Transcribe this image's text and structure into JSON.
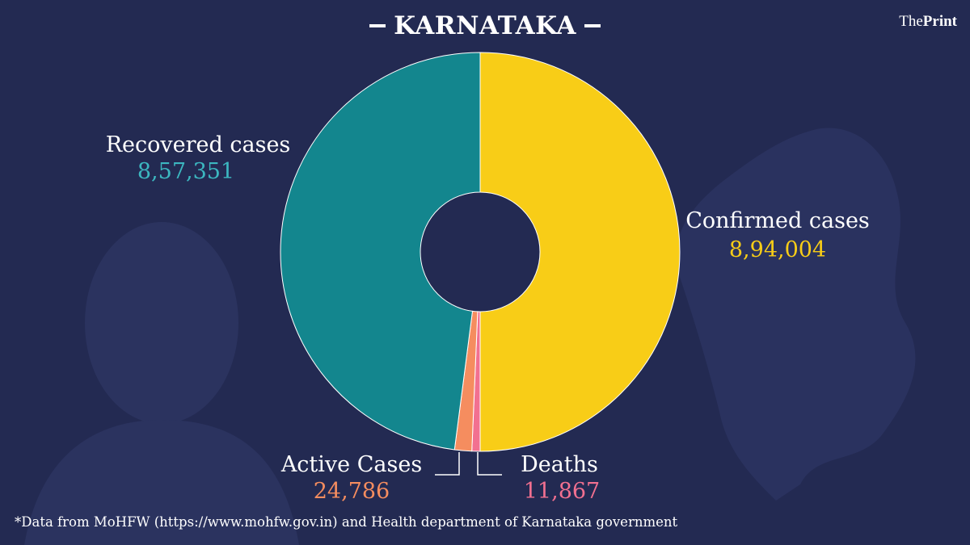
{
  "header": {
    "title": "KARNATAKA",
    "logo_light": "The",
    "logo_bold": "Print"
  },
  "colors": {
    "background": "#232a52",
    "recovered": "#13868e",
    "confirmed": "#f8cd17",
    "active": "#f58d5f",
    "deaths": "#f27090"
  },
  "chart_data": {
    "type": "pie",
    "title": "KARNATAKA",
    "slices": [
      {
        "label": "Confirmed cases",
        "value": 894004,
        "display": "8,94,004",
        "color": "#f8cd17"
      },
      {
        "label": "Deaths",
        "value": 11867,
        "display": "11,867",
        "color": "#f27090"
      },
      {
        "label": "Active Cases",
        "value": 24786,
        "display": "24,786",
        "color": "#f58d5f"
      },
      {
        "label": "Recovered cases",
        "value": 857351,
        "display": "8,57,351",
        "color": "#13868e"
      }
    ]
  },
  "footnote": "*Data from MoHFW (https://www.mohfw.gov.in)  and Health department of  Karnataka government"
}
